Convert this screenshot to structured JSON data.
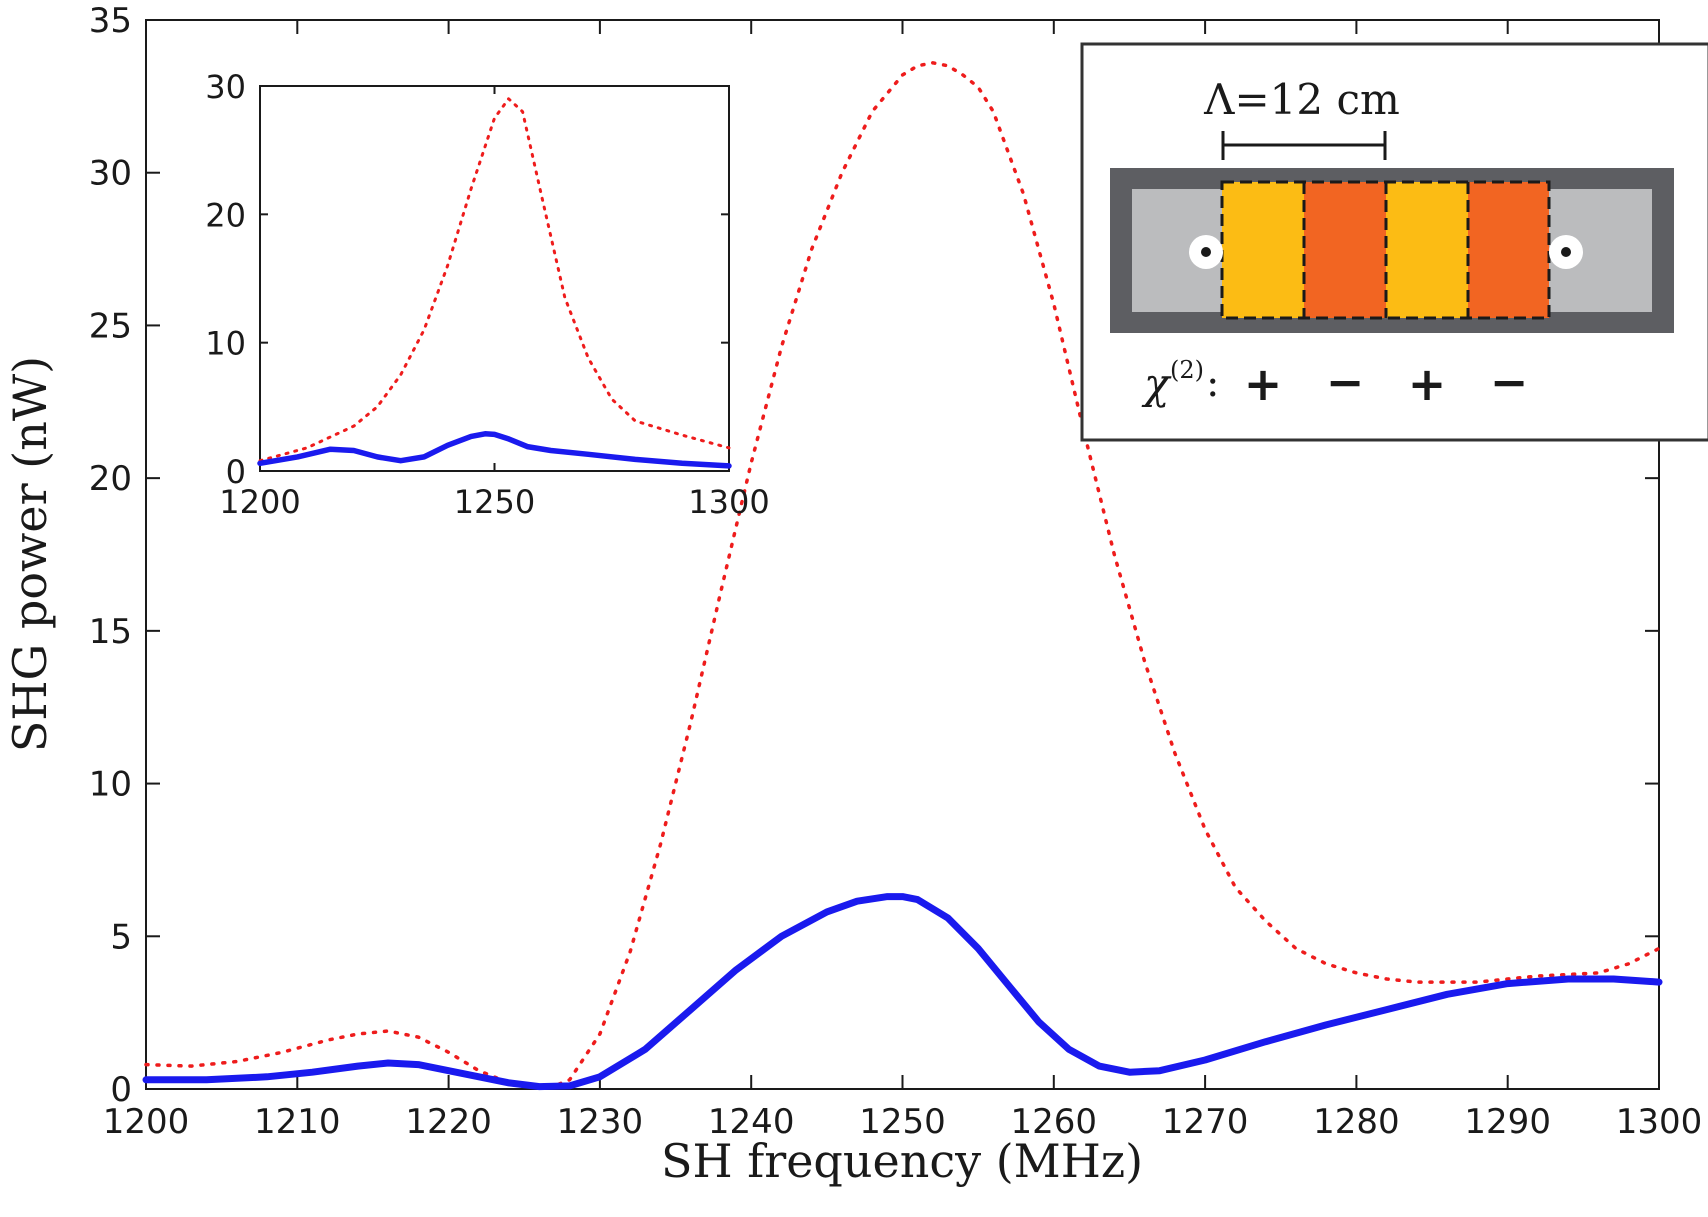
{
  "chart_data": [
    {
      "type": "line",
      "title": "",
      "xlabel": "SH frequency (MHz)",
      "ylabel": "SHG power (nW)",
      "xlim": [
        1200,
        1300
      ],
      "ylim": [
        0,
        35
      ],
      "xticks": [
        1200,
        1210,
        1220,
        1230,
        1240,
        1250,
        1260,
        1270,
        1280,
        1290,
        1300
      ],
      "yticks": [
        0,
        5,
        10,
        15,
        20,
        25,
        30,
        35
      ],
      "grid": false,
      "series": [
        {
          "style": "dotted",
          "color": "#ee1c1c",
          "x": [
            1200,
            1203,
            1206,
            1209,
            1212,
            1214,
            1216,
            1218,
            1220,
            1222,
            1224,
            1226,
            1227,
            1228,
            1230,
            1232,
            1234,
            1236,
            1238,
            1240,
            1242,
            1244,
            1246,
            1248,
            1250,
            1251,
            1252,
            1253,
            1254,
            1255,
            1256,
            1258,
            1260,
            1262,
            1264,
            1266,
            1268,
            1270,
            1272,
            1274,
            1276,
            1278,
            1280,
            1282,
            1284,
            1286,
            1288,
            1290,
            1292,
            1294,
            1296,
            1298,
            1300
          ],
          "y": [
            0.8,
            0.75,
            0.9,
            1.2,
            1.6,
            1.8,
            1.9,
            1.7,
            1.2,
            0.6,
            0.2,
            0.05,
            0.1,
            0.3,
            1.8,
            4.5,
            8.0,
            12.0,
            16.3,
            20.5,
            24.3,
            27.5,
            30.0,
            32.0,
            33.2,
            33.5,
            33.6,
            33.5,
            33.2,
            32.8,
            32.0,
            29.3,
            25.7,
            21.5,
            17.5,
            14.0,
            11.0,
            8.5,
            6.6,
            5.5,
            4.6,
            4.1,
            3.8,
            3.6,
            3.5,
            3.5,
            3.5,
            3.6,
            3.7,
            3.75,
            3.8,
            4.1,
            4.6
          ]
        },
        {
          "style": "solid",
          "color": "#1a1aee",
          "x": [
            1200,
            1204,
            1208,
            1211,
            1214,
            1216,
            1218,
            1220,
            1222,
            1224,
            1226,
            1228,
            1230,
            1233,
            1236,
            1239,
            1242,
            1245,
            1247,
            1249,
            1250,
            1251,
            1253,
            1255,
            1257,
            1259,
            1261,
            1263,
            1265,
            1267,
            1270,
            1274,
            1278,
            1282,
            1286,
            1290,
            1294,
            1297,
            1300
          ],
          "y": [
            0.3,
            0.3,
            0.4,
            0.55,
            0.75,
            0.85,
            0.8,
            0.6,
            0.4,
            0.2,
            0.08,
            0.1,
            0.4,
            1.3,
            2.6,
            3.9,
            5.0,
            5.8,
            6.15,
            6.3,
            6.3,
            6.2,
            5.6,
            4.6,
            3.4,
            2.2,
            1.3,
            0.75,
            0.55,
            0.6,
            0.95,
            1.55,
            2.1,
            2.6,
            3.1,
            3.45,
            3.6,
            3.6,
            3.5
          ]
        }
      ]
    },
    {
      "type": "line",
      "title": "",
      "xlabel": "",
      "ylabel": "",
      "xlim": [
        1200,
        1300
      ],
      "ylim": [
        0,
        30
      ],
      "xticks": [
        1200,
        1250,
        1300
      ],
      "yticks": [
        0,
        10,
        20,
        30
      ],
      "grid": false,
      "series": [
        {
          "style": "dotted",
          "color": "#ee1c1c",
          "x": [
            1200,
            1210,
            1220,
            1225,
            1230,
            1235,
            1240,
            1245,
            1250,
            1253,
            1256,
            1260,
            1265,
            1270,
            1275,
            1280,
            1290,
            1300
          ],
          "y": [
            0.8,
            1.8,
            3.5,
            5.0,
            7.5,
            11.0,
            16.0,
            22.0,
            27.5,
            29.0,
            28.0,
            21.5,
            13.5,
            8.8,
            5.6,
            3.9,
            2.8,
            1.8
          ]
        },
        {
          "style": "solid",
          "color": "#1a1aee",
          "x": [
            1200,
            1208,
            1215,
            1220,
            1225,
            1230,
            1235,
            1240,
            1245,
            1248,
            1250,
            1253,
            1257,
            1262,
            1270,
            1280,
            1290,
            1300
          ],
          "y": [
            0.6,
            1.1,
            1.7,
            1.6,
            1.1,
            0.8,
            1.1,
            2.0,
            2.7,
            2.9,
            2.85,
            2.5,
            1.9,
            1.6,
            1.3,
            0.9,
            0.6,
            0.4
          ]
        }
      ]
    }
  ],
  "schematic": {
    "period_label": "Λ=12 cm",
    "chi_symbol": "χ",
    "chi_order": "(2)",
    "chi_colon": ":",
    "signs": [
      "+",
      "−",
      "+",
      "−"
    ],
    "colors": {
      "frame": "#5d5e62",
      "gap": "#bbbcbe",
      "domain_positive": "#fcbc14",
      "domain_negative": "#f26522"
    }
  }
}
